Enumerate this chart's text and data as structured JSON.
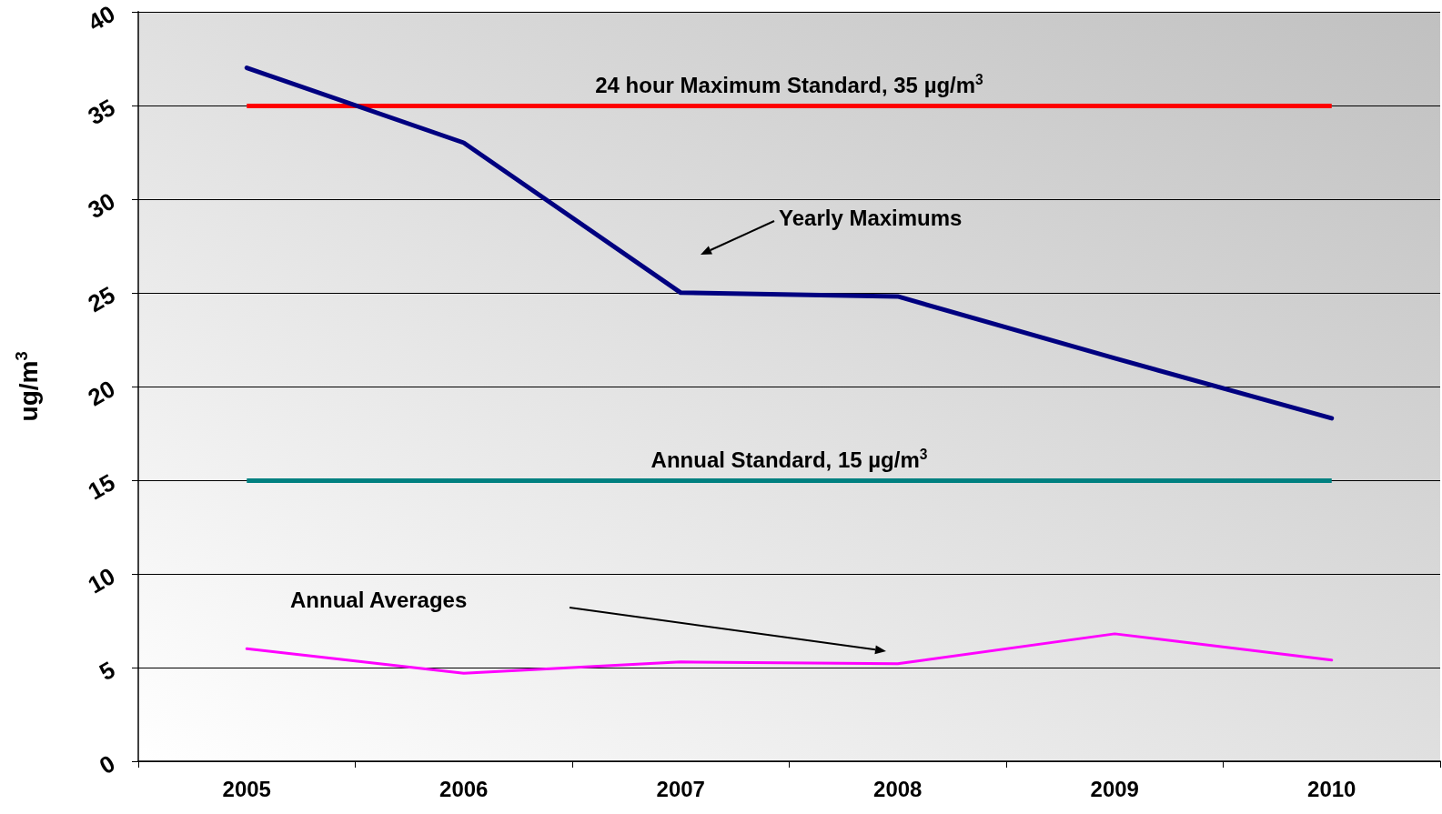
{
  "chart_data": {
    "type": "line",
    "ylabel": "ug/m$^{3}$",
    "categories": [
      "2005",
      "2006",
      "2007",
      "2008",
      "2009",
      "2010"
    ],
    "series": [
      {
        "color": "#000080",
        "values": [
          37.0,
          33.0,
          25.0,
          24.8,
          21.5,
          18.3
        ]
      },
      {
        "color": "#ff00ff",
        "values": [
          6.0,
          4.7,
          5.3,
          5.2,
          6.8,
          5.4
        ]
      }
    ],
    "ylim": [
      0,
      40
    ],
    "yticks": [
      0,
      5,
      10,
      15,
      20,
      25,
      30,
      35,
      40
    ],
    "grid": "y",
    "marker": "none",
    "line_style": "solid",
    "ref_lines": [
      {
        "axis": "y",
        "value": 35,
        "label": "24 hour Maximum Standard, 35 µg/m$^{3}$",
        "color": "#ff0000"
      },
      {
        "axis": "y",
        "value": 15,
        "label": "Annual Standard, 15 µg/m$^{3}$",
        "color": "#008080"
      }
    ],
    "annotations": [
      "Yearly Maximums",
      "Annual Averages"
    ]
  }
}
